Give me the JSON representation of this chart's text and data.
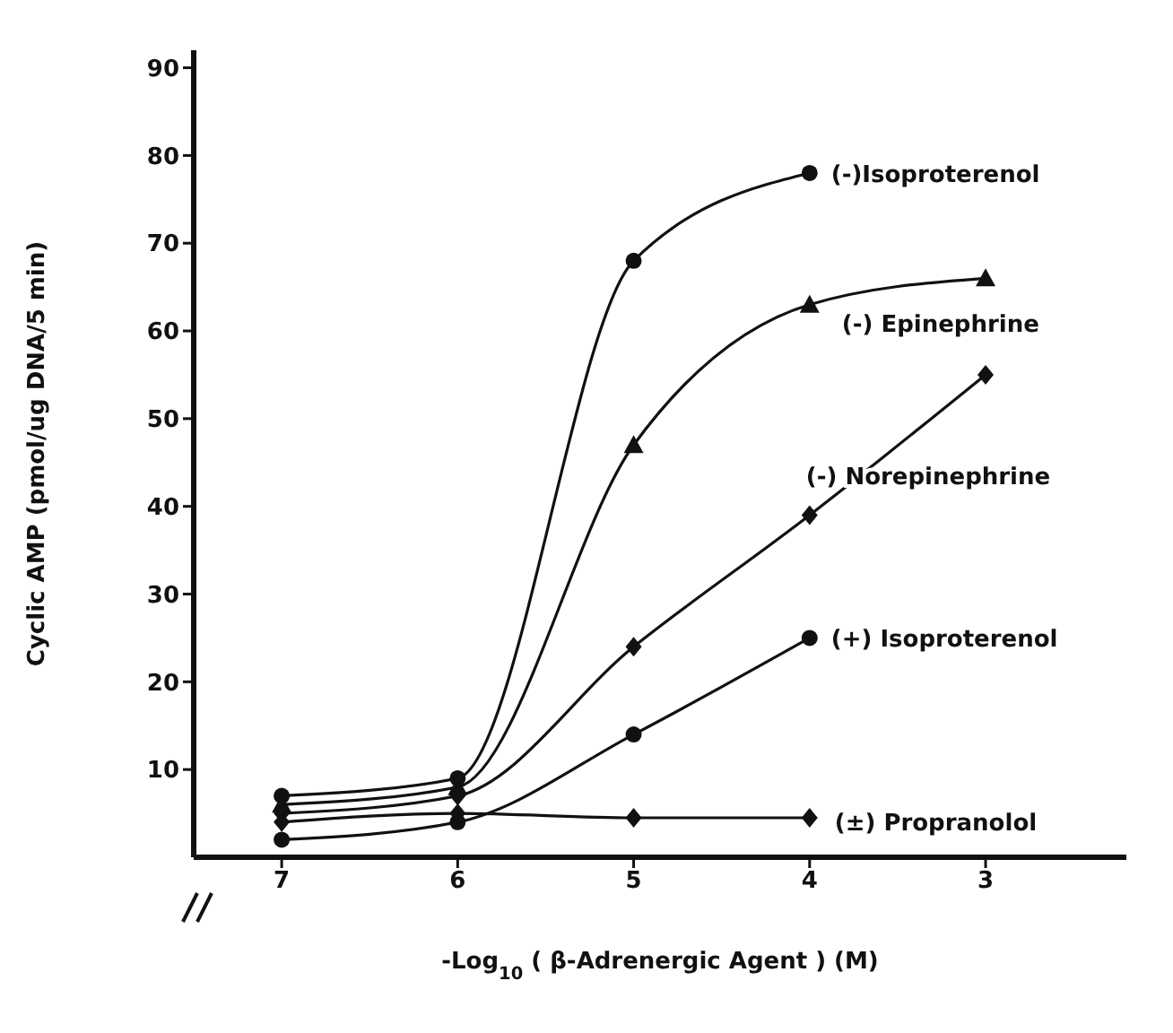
{
  "chart_data": {
    "type": "line",
    "xlabel": "-Log$_{10}$ ( β-Adrenergic Agent )  (M)",
    "ylabel": "Cyclic AMP  (pmol/ug DNA/5 min)",
    "xlim": [
      7.5,
      2.2
    ],
    "xticks": [
      7,
      6,
      5,
      4,
      3
    ],
    "ylim": [
      0,
      92
    ],
    "yticks": [
      10,
      20,
      30,
      40,
      50,
      60,
      70,
      80,
      90
    ],
    "line_style": "solid",
    "series": [
      {
        "name": "(-)Isoproterenol",
        "color": "#111111",
        "marker": "circle",
        "x": [
          7,
          6,
          5,
          4
        ],
        "values": [
          7,
          9,
          68,
          78
        ]
      },
      {
        "name": "(-) Epinephrine",
        "color": "#111111",
        "marker": "triangle",
        "x": [
          7,
          6,
          5,
          4,
          3
        ],
        "values": [
          6,
          8,
          47,
          63,
          66
        ]
      },
      {
        "name": "(-) Norepinephrine",
        "color": "#111111",
        "marker": "diamond",
        "x": [
          7,
          6,
          5,
          4,
          3
        ],
        "values": [
          5,
          7,
          24,
          39,
          55
        ]
      },
      {
        "name": "(+) Isoproterenol",
        "color": "#111111",
        "marker": "circle",
        "x": [
          7,
          6,
          5,
          4
        ],
        "values": [
          2,
          4,
          14,
          25
        ]
      },
      {
        "name": "(±) Propranolol",
        "color": "#111111",
        "marker": "diamond",
        "x": [
          7,
          6,
          5,
          4
        ],
        "values": [
          4,
          5,
          4.5,
          4.5
        ]
      }
    ]
  }
}
